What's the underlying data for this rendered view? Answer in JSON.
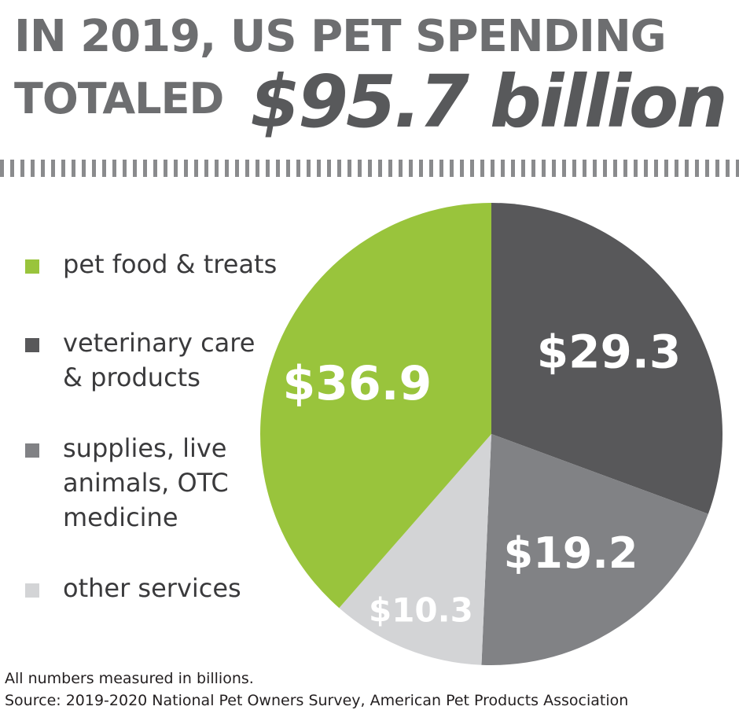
{
  "headline": {
    "line1": "IN 2019, US PET SPENDING",
    "line2": "TOTALED",
    "total": "$95.7 billion"
  },
  "chart_data": {
    "type": "pie",
    "title": "IN 2019, US PET SPENDING TOTALED $95.7 billion",
    "total": 95.7,
    "unit": "billions",
    "legend_position": "left",
    "slices": [
      {
        "label": "pet food & treats",
        "value": 36.9,
        "value_label": "$36.9",
        "color": "#99c43c"
      },
      {
        "label": "veterinary care & products",
        "value": 29.3,
        "value_label": "$29.3",
        "color": "#58585a"
      },
      {
        "label": "supplies, live animals, OTC medicine",
        "value": 19.2,
        "value_label": "$19.2",
        "color": "#818285"
      },
      {
        "label": "other services",
        "value": 10.3,
        "value_label": "$10.3",
        "color": "#d3d4d6"
      }
    ]
  },
  "footnotes": {
    "units_note": "All numbers measured in billions.",
    "source": "Source: 2019-2020 National Pet Owners Survey, American Pet Products Association"
  }
}
